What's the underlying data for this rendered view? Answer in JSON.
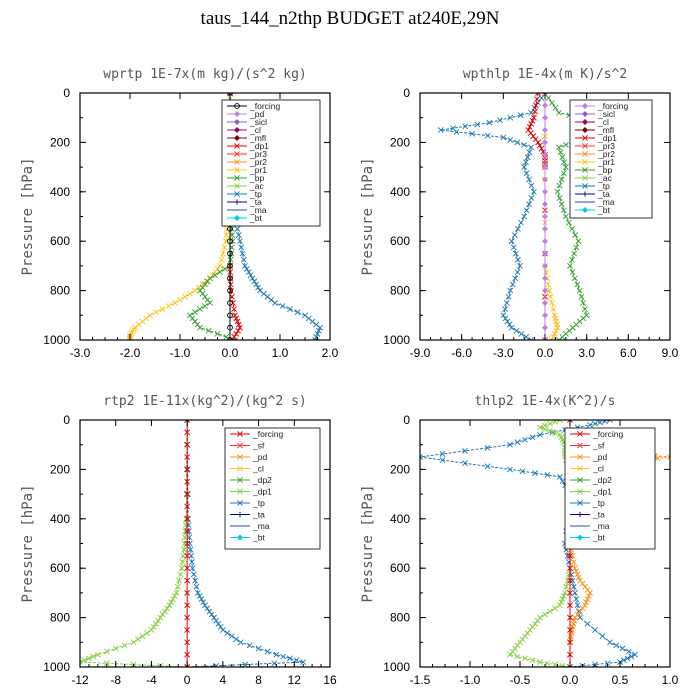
{
  "figure_title": "taus_144_n2thp  BUDGET at240E,29N",
  "chart_data": [
    {
      "type": "line",
      "title": "wprtp  1E-7x(m kg)/(s^2 kg)",
      "ylabel": "Pressure [hPa]",
      "xlim": [
        -3.0,
        2.0
      ],
      "ylim": [
        1000,
        0
      ],
      "xticks": [
        "-3.0",
        "-2.0",
        "-1.0",
        "0.0",
        "1.0",
        "2.0"
      ],
      "yticks": [
        "0",
        "200",
        "400",
        "600",
        "800",
        "1000"
      ],
      "legend_position": "top-right",
      "series": [
        {
          "name": "_forcing",
          "color": "#000000",
          "marker": "o"
        },
        {
          "name": "_pd",
          "color": "#c080e0",
          "marker": "d"
        },
        {
          "name": "_sicl",
          "color": "#9060c0",
          "marker": "d"
        },
        {
          "name": "_cl",
          "color": "#a0005a",
          "marker": "d"
        },
        {
          "name": "_mfl",
          "color": "#800000",
          "marker": "d"
        },
        {
          "name": "_dp1",
          "color": "#e00000",
          "marker": "x"
        },
        {
          "name": "_pr3",
          "color": "#ff3030",
          "marker": "x"
        },
        {
          "name": "_pr2",
          "color": "#ff9020",
          "marker": "x"
        },
        {
          "name": "_pr1",
          "color": "#ffc020",
          "marker": "x"
        },
        {
          "name": "_bp",
          "color": "#30a030",
          "marker": "x"
        },
        {
          "name": "_ac",
          "color": "#80d040",
          "marker": "x"
        },
        {
          "name": "_tp",
          "color": "#1f77b4",
          "marker": "x"
        },
        {
          "name": "_ta",
          "color": "#000080",
          "marker": "+"
        },
        {
          "name": "_ma",
          "color": "#2050a0",
          "marker": "-"
        },
        {
          "name": "_bt",
          "color": "#00d0e0",
          "marker": "d"
        }
      ],
      "profiles": [
        {
          "name": "_pr1",
          "p": [
            0,
            100,
            300,
            500,
            600,
            700,
            750,
            800,
            850,
            900,
            950,
            980,
            1000
          ],
          "x": [
            0,
            0,
            -0.02,
            -0.05,
            -0.08,
            -0.2,
            -0.4,
            -0.7,
            -1.1,
            -1.6,
            -1.9,
            -2.0,
            -2.0
          ]
        },
        {
          "name": "_bp",
          "p": [
            0,
            300,
            500,
            600,
            700,
            750,
            800,
            850,
            900,
            950,
            1000
          ],
          "x": [
            0,
            0,
            0.02,
            0.05,
            0,
            -0.4,
            -0.6,
            -0.4,
            -0.8,
            -0.6,
            0.1
          ]
        },
        {
          "name": "_tp",
          "p": [
            0,
            300,
            500,
            600,
            700,
            750,
            800,
            850,
            900,
            950,
            1000
          ],
          "x": [
            0,
            0.05,
            0.1,
            0.2,
            0.3,
            0.45,
            0.6,
            0.9,
            1.5,
            1.8,
            1.7
          ]
        },
        {
          "name": "_dp1",
          "p": [
            0,
            700,
            800,
            900,
            950,
            1000
          ],
          "x": [
            0,
            0,
            0.02,
            0.1,
            0.2,
            0.05
          ]
        },
        {
          "name": "_forcing",
          "p": [
            0,
            200,
            400,
            600,
            800,
            1000
          ],
          "x": [
            0,
            0,
            0,
            0,
            0,
            0
          ]
        }
      ]
    },
    {
      "type": "line",
      "title": "wpthlp  1E-4x(m K)/s^2",
      "ylabel": "Pressure [hPa]",
      "xlim": [
        -9.0,
        9.0
      ],
      "ylim": [
        1000,
        0
      ],
      "xticks": [
        "-9.0",
        "-6.0",
        "-3.0",
        "0.0",
        "3.0",
        "6.0",
        "9.0"
      ],
      "yticks": [
        "0",
        "200",
        "400",
        "600",
        "800",
        "1000"
      ],
      "legend_position": "top-right",
      "series": [
        {
          "name": "_forcing",
          "color": "#c080e0",
          "marker": "d"
        },
        {
          "name": "_sicl",
          "color": "#9060c0",
          "marker": "d"
        },
        {
          "name": "_cl",
          "color": "#a0005a",
          "marker": "d"
        },
        {
          "name": "_mfl",
          "color": "#800000",
          "marker": "d"
        },
        {
          "name": "_dp1",
          "color": "#e00000",
          "marker": "x"
        },
        {
          "name": "_pr3",
          "color": "#ff3030",
          "marker": "x"
        },
        {
          "name": "_pr2",
          "color": "#ff9020",
          "marker": "x"
        },
        {
          "name": "_pr1",
          "color": "#ffc020",
          "marker": "x"
        },
        {
          "name": "_bp",
          "color": "#30a030",
          "marker": "x"
        },
        {
          "name": "_ac",
          "color": "#80d040",
          "marker": "x"
        },
        {
          "name": "_tp",
          "color": "#1f77b4",
          "marker": "x"
        },
        {
          "name": "_ta",
          "color": "#000080",
          "marker": "+"
        },
        {
          "name": "_ma",
          "color": "#2050a0",
          "marker": "-"
        },
        {
          "name": "_bt",
          "color": "#00d0e0",
          "marker": "d"
        }
      ],
      "profiles": [
        {
          "name": "_tp",
          "p": [
            0,
            80,
            120,
            150,
            180,
            220,
            300,
            400,
            500,
            600,
            700,
            800,
            900,
            950,
            1000
          ],
          "x": [
            0,
            -1,
            -4,
            -7.5,
            -3,
            -1,
            -1.5,
            -0.8,
            -1.5,
            -2.4,
            -1.8,
            -2.5,
            -3.0,
            -2.4,
            -1.0
          ]
        },
        {
          "name": "_bp",
          "p": [
            0,
            80,
            120,
            150,
            180,
            220,
            300,
            400,
            500,
            600,
            700,
            800,
            900,
            950,
            1000
          ],
          "x": [
            0,
            1,
            4,
            6.8,
            3,
            1,
            1.5,
            0.9,
            1.5,
            2.4,
            1.8,
            2.5,
            3.0,
            2.0,
            1.0
          ]
        },
        {
          "name": "_dp1",
          "p": [
            0,
            100,
            150,
            200,
            250,
            300,
            1000
          ],
          "x": [
            -0.5,
            -0.8,
            -1.2,
            -0.5,
            0,
            0,
            0
          ]
        },
        {
          "name": "_pr1",
          "p": [
            0,
            700,
            800,
            900,
            950,
            1000
          ],
          "x": [
            0,
            0,
            0.3,
            0.7,
            0.9,
            0.5
          ]
        },
        {
          "name": "_forcing",
          "p": [
            0,
            200,
            400,
            600,
            800,
            1000
          ],
          "x": [
            0,
            0,
            0,
            0,
            0,
            0
          ]
        }
      ]
    },
    {
      "type": "line",
      "title": "rtp2  1E-11x(kg^2)/(kg^2 s)",
      "ylabel": "Pressure [hPa]",
      "xlim": [
        -12,
        16
      ],
      "ylim": [
        1000,
        0
      ],
      "xticks": [
        "-12",
        "-8",
        "-4",
        "0",
        "4",
        "8",
        "12",
        "16"
      ],
      "yticks": [
        "0",
        "200",
        "400",
        "600",
        "800",
        "1000"
      ],
      "legend_position": "top-right",
      "series": [
        {
          "name": "_forcing",
          "color": "#e00000",
          "marker": "x"
        },
        {
          "name": "_sf",
          "color": "#ff3030",
          "marker": "x"
        },
        {
          "name": "_pd",
          "color": "#ff9020",
          "marker": "x"
        },
        {
          "name": "_cl",
          "color": "#ffc020",
          "marker": "x"
        },
        {
          "name": "_dp2",
          "color": "#30a030",
          "marker": "x"
        },
        {
          "name": "_dp1",
          "color": "#80d040",
          "marker": "x"
        },
        {
          "name": "_tp",
          "color": "#1f77b4",
          "marker": "x"
        },
        {
          "name": "_ta",
          "color": "#000080",
          "marker": "+"
        },
        {
          "name": "_ma",
          "color": "#2050a0",
          "marker": "-"
        },
        {
          "name": "_bt",
          "color": "#00d0e0",
          "marker": "d"
        }
      ],
      "profiles": [
        {
          "name": "_tp",
          "p": [
            0,
            400,
            500,
            600,
            700,
            750,
            800,
            850,
            900,
            950,
            980,
            1000
          ],
          "x": [
            0,
            0.1,
            0.3,
            0.6,
            1.2,
            2,
            3,
            4,
            6,
            10,
            13,
            0
          ]
        },
        {
          "name": "_dp1",
          "p": [
            0,
            400,
            500,
            600,
            700,
            750,
            800,
            850,
            900,
            950,
            980,
            1000
          ],
          "x": [
            0,
            -0.1,
            -0.3,
            -0.6,
            -1.2,
            -2,
            -3,
            -4,
            -6,
            -10,
            -12,
            0
          ]
        },
        {
          "name": "_forcing",
          "p": [
            0,
            200,
            400,
            600,
            800,
            1000
          ],
          "x": [
            0,
            0,
            0,
            0,
            0,
            0
          ]
        }
      ]
    },
    {
      "type": "line",
      "title": "thlp2  1E-4x(K^2)/s",
      "ylabel": "Pressure [hPa]",
      "xlim": [
        -1.5,
        1.0
      ],
      "ylim": [
        1000,
        0
      ],
      "xticks": [
        "-1.5",
        "-1.0",
        "-0.5",
        "0.0",
        "0.5",
        "1.0"
      ],
      "yticks": [
        "0",
        "200",
        "400",
        "600",
        "800",
        "1000"
      ],
      "legend_position": "top-right",
      "series": [
        {
          "name": "_forcing",
          "color": "#e00000",
          "marker": "x"
        },
        {
          "name": "_sf",
          "color": "#ff3030",
          "marker": "x"
        },
        {
          "name": "_pd",
          "color": "#ff9020",
          "marker": "x"
        },
        {
          "name": "_cl",
          "color": "#ffc020",
          "marker": "x"
        },
        {
          "name": "_dp2",
          "color": "#30a030",
          "marker": "x"
        },
        {
          "name": "_dp1",
          "color": "#80d040",
          "marker": "x"
        },
        {
          "name": "_tp",
          "color": "#1f77b4",
          "marker": "x"
        },
        {
          "name": "_ta",
          "color": "#000080",
          "marker": "+"
        },
        {
          "name": "_ma",
          "color": "#2050a0",
          "marker": "-"
        },
        {
          "name": "_bt",
          "color": "#00d0e0",
          "marker": "d"
        }
      ],
      "profiles": [
        {
          "name": "_tp",
          "p": [
            0,
            20,
            60,
            100,
            150,
            200,
            230,
            300,
            500,
            600,
            700,
            800,
            900,
            950,
            980,
            1000
          ],
          "x": [
            0.4,
            0.2,
            -0.3,
            -0.6,
            -1.5,
            -0.6,
            -0.1,
            0,
            -0.05,
            0,
            0.05,
            0.1,
            0.4,
            0.65,
            0.5,
            0
          ]
        },
        {
          "name": "_dp1",
          "p": [
            0,
            30,
            60,
            100,
            150,
            200,
            600,
            700,
            750,
            800,
            850,
            900,
            950,
            980,
            1000
          ],
          "x": [
            -0.1,
            -0.3,
            -0.1,
            -0.05,
            -0.05,
            0,
            0,
            -0.05,
            -0.1,
            -0.3,
            -0.4,
            -0.5,
            -0.6,
            -0.3,
            0
          ]
        },
        {
          "name": "_pd",
          "p": [
            100,
            130,
            150,
            170,
            200,
            500,
            600,
            650,
            700,
            750,
            800,
            850,
            900
          ],
          "x": [
            0,
            0.4,
            1.0,
            0.5,
            0.1,
            0,
            0.05,
            0.1,
            0.2,
            0.15,
            0.05,
            0.02,
            0
          ]
        },
        {
          "name": "_dp2",
          "p": [
            100,
            130,
            150,
            170,
            200
          ],
          "x": [
            0,
            0.2,
            0.4,
            0.2,
            0
          ]
        },
        {
          "name": "_forcing",
          "p": [
            0,
            200,
            400,
            600,
            800,
            1000
          ],
          "x": [
            0,
            0,
            0,
            0,
            0,
            0
          ]
        }
      ]
    }
  ]
}
